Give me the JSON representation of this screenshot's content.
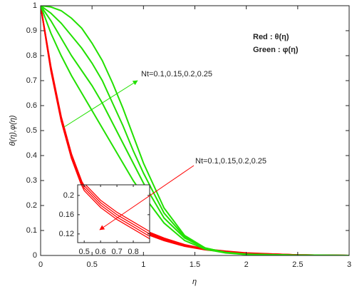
{
  "chart_data": [
    {
      "type": "line",
      "x_label": "η",
      "y_label": "θ(η),φ(η)",
      "x": [
        0,
        0.1,
        0.2,
        0.3,
        0.4,
        0.5,
        0.6,
        0.7,
        0.8,
        0.9,
        1,
        1.2,
        1.4,
        1.6,
        1.8,
        2,
        2.5,
        3
      ],
      "series": [
        {
          "color": "#ff0000",
          "values": [
            1,
            0.74,
            0.54,
            0.39,
            0.28,
            0.21,
            0.175,
            0.15,
            0.13,
            0.11,
            0.09,
            0.06,
            0.037,
            0.023,
            0.014,
            0.008,
            0.002,
            0
          ]
        },
        {
          "color": "#ff0000",
          "values": [
            1,
            0.745,
            0.545,
            0.395,
            0.285,
            0.215,
            0.18,
            0.155,
            0.135,
            0.115,
            0.094,
            0.063,
            0.039,
            0.024,
            0.015,
            0.009,
            0.002,
            0
          ]
        },
        {
          "color": "#ff0000",
          "values": [
            1,
            0.75,
            0.55,
            0.4,
            0.29,
            0.22,
            0.185,
            0.16,
            0.14,
            0.12,
            0.098,
            0.066,
            0.041,
            0.025,
            0.016,
            0.009,
            0.002,
            0
          ]
        },
        {
          "color": "#ff0000",
          "values": [
            1,
            0.755,
            0.555,
            0.405,
            0.295,
            0.225,
            0.19,
            0.165,
            0.145,
            0.125,
            0.102,
            0.069,
            0.043,
            0.026,
            0.017,
            0.01,
            0.002,
            0
          ]
        },
        {
          "color": "#22e000",
          "values": [
            1,
            0.995,
            0.98,
            0.95,
            0.91,
            0.85,
            0.78,
            0.69,
            0.59,
            0.48,
            0.37,
            0.19,
            0.08,
            0.03,
            0.012,
            0.005,
            0.001,
            0
          ]
        },
        {
          "color": "#22e000",
          "values": [
            1,
            0.97,
            0.93,
            0.88,
            0.83,
            0.77,
            0.7,
            0.61,
            0.52,
            0.42,
            0.33,
            0.17,
            0.075,
            0.03,
            0.012,
            0.005,
            0.001,
            0
          ]
        },
        {
          "color": "#22e000",
          "values": [
            1,
            0.94,
            0.87,
            0.8,
            0.74,
            0.68,
            0.61,
            0.53,
            0.45,
            0.37,
            0.29,
            0.15,
            0.07,
            0.028,
            0.011,
            0.004,
            0.001,
            0
          ]
        },
        {
          "color": "#22e000",
          "values": [
            1,
            0.89,
            0.8,
            0.72,
            0.65,
            0.58,
            0.51,
            0.44,
            0.37,
            0.3,
            0.24,
            0.13,
            0.06,
            0.025,
            0.01,
            0.004,
            0.001,
            0
          ]
        }
      ],
      "xlim": [
        0,
        3
      ],
      "xticks": [
        0,
        0.5,
        1,
        1.5,
        2,
        2.5,
        3
      ],
      "ylim": [
        0,
        1
      ],
      "yticks": [
        0,
        0.1,
        0.2,
        0.3,
        0.4,
        0.5,
        0.6,
        0.7,
        0.8,
        0.9,
        1
      ],
      "annotations": [
        {
          "text": "Red    : θ(η)",
          "color": "#000000"
        },
        {
          "text": "Green : φ(η)",
          "color": "#000000"
        },
        {
          "text": "Nt=0.1,0.15,0.2,0.25",
          "color": "#000000"
        },
        {
          "text": "Nt=0.1,0.15,0.2,0.25",
          "color": "#ff0000"
        }
      ]
    },
    {
      "type": "line",
      "x": [
        0.4,
        0.5,
        0.6,
        0.7,
        0.8,
        0.9
      ],
      "series": [
        {
          "color": "#ff0000",
          "values": [
            0.28,
            0.21,
            0.175,
            0.15,
            0.13,
            0.11
          ]
        },
        {
          "color": "#ff0000",
          "values": [
            0.285,
            0.215,
            0.18,
            0.155,
            0.135,
            0.115
          ]
        },
        {
          "color": "#ff0000",
          "values": [
            0.29,
            0.22,
            0.185,
            0.16,
            0.14,
            0.12
          ]
        },
        {
          "color": "#ff0000",
          "values": [
            0.295,
            0.225,
            0.19,
            0.165,
            0.145,
            0.125
          ]
        }
      ],
      "xlim": [
        0.46,
        0.9
      ],
      "xticks": [
        0.5,
        0.6,
        0.7,
        0.8
      ],
      "ylim": [
        0.102,
        0.222
      ],
      "yticks": [
        0.12,
        0.16,
        0.2
      ]
    }
  ]
}
